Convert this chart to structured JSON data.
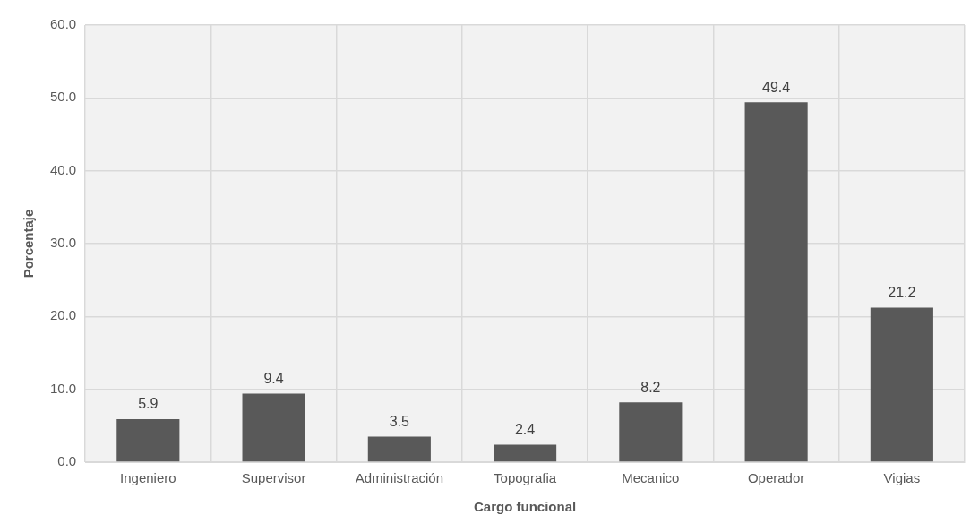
{
  "chart_data": {
    "type": "bar",
    "xlabel": "Cargo funcional",
    "ylabel": "Porcentaje",
    "categories": [
      "Ingeniero",
      "Supervisor",
      "Administración",
      "Topografia",
      "Mecanico",
      "Operador",
      "Vigias"
    ],
    "values": [
      5.9,
      9.4,
      3.5,
      2.4,
      8.2,
      49.4,
      21.2
    ],
    "color": "#595959",
    "ylim": [
      0,
      60
    ],
    "yticks": [
      {
        "value": 0,
        "label": "0.0"
      },
      {
        "value": 10,
        "label": "10.0"
      },
      {
        "value": 20,
        "label": "20.0"
      },
      {
        "value": 30,
        "label": "30.0"
      },
      {
        "value": 40,
        "label": "40.0"
      },
      {
        "value": 50,
        "label": "50.0"
      },
      {
        "value": 60,
        "label": "60.0"
      }
    ],
    "grid": true,
    "data_labels": true
  }
}
